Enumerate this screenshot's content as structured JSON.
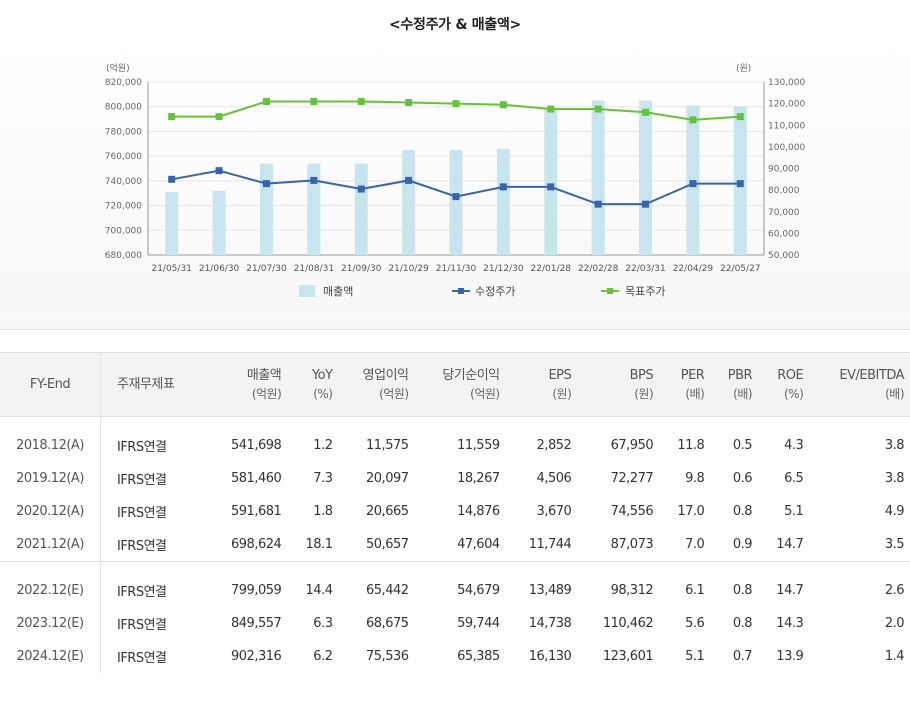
{
  "title": "<수정주가 & 매출액>",
  "chart_data": {
    "type": "bar+line",
    "left_axis_unit": "(억원)",
    "right_axis_unit": "(원)",
    "left_ticks": [
      "820,000",
      "800,000",
      "780,000",
      "760,000",
      "740,000",
      "720,000",
      "700,000",
      "680,000"
    ],
    "right_ticks": [
      "130,000",
      "120,000",
      "110,000",
      "100,000",
      "90,000",
      "80,000",
      "70,000",
      "60,000",
      "50,000"
    ],
    "ylim_left": [
      680000,
      820000
    ],
    "ylim_right": [
      50000,
      130000
    ],
    "categories": [
      "21/05/31",
      "21/06/30",
      "21/07/30",
      "21/08/31",
      "21/09/30",
      "21/10/29",
      "21/11/30",
      "21/12/30",
      "22/01/28",
      "22/02/28",
      "22/03/31",
      "22/04/29",
      "22/05/27"
    ],
    "series": [
      {
        "name": "매출액",
        "type": "bar",
        "axis": "left",
        "color": "#c6e5ec",
        "values": [
          731000,
          732000,
          754000,
          754000,
          754000,
          765000,
          765000,
          766000,
          799000,
          805000,
          805000,
          801000,
          800000
        ]
      },
      {
        "name": "수정주가",
        "type": "line",
        "axis": "right",
        "color": "#3a62ad",
        "values": [
          85000,
          89000,
          83000,
          84500,
          80500,
          84500,
          77000,
          81500,
          81500,
          73500,
          73500,
          83000,
          83000
        ]
      },
      {
        "name": "목표주가",
        "type": "line",
        "axis": "right",
        "color": "#66c23a",
        "values": [
          114000,
          114000,
          121000,
          121000,
          121000,
          120500,
          120000,
          119500,
          117500,
          117500,
          116000,
          112500,
          114000
        ]
      }
    ],
    "grid": true,
    "legend": "bottom"
  },
  "table": {
    "headers": [
      {
        "label": "FY-End",
        "unit": ""
      },
      {
        "label": "주재무제표",
        "unit": ""
      },
      {
        "label": "매출액",
        "unit": "(억원)"
      },
      {
        "label": "YoY",
        "unit": "(%)"
      },
      {
        "label": "영업이익",
        "unit": "(억원)"
      },
      {
        "label": "당기순이익",
        "unit": "(억원)"
      },
      {
        "label": "EPS",
        "unit": "(원)"
      },
      {
        "label": "BPS",
        "unit": "(원)"
      },
      {
        "label": "PER",
        "unit": "(배)"
      },
      {
        "label": "PBR",
        "unit": "(배)"
      },
      {
        "label": "ROE",
        "unit": "(%)"
      },
      {
        "label": "EV/EBITDA",
        "unit": "(배)"
      }
    ],
    "actual_rows": [
      [
        "2018.12(A)",
        "IFRS연결",
        "541,698",
        "1.2",
        "11,575",
        "11,559",
        "2,852",
        "67,950",
        "11.8",
        "0.5",
        "4.3",
        "3.8"
      ],
      [
        "2019.12(A)",
        "IFRS연결",
        "581,460",
        "7.3",
        "20,097",
        "18,267",
        "4,506",
        "72,277",
        "9.8",
        "0.6",
        "6.5",
        "3.8"
      ],
      [
        "2020.12(A)",
        "IFRS연결",
        "591,681",
        "1.8",
        "20,665",
        "14,876",
        "3,670",
        "74,556",
        "17.0",
        "0.8",
        "5.1",
        "4.9"
      ],
      [
        "2021.12(A)",
        "IFRS연결",
        "698,624",
        "18.1",
        "50,657",
        "47,604",
        "11,744",
        "87,073",
        "7.0",
        "0.9",
        "14.7",
        "3.5"
      ]
    ],
    "estimate_rows": [
      [
        "2022.12(E)",
        "IFRS연결",
        "799,059",
        "14.4",
        "65,442",
        "54,679",
        "13,489",
        "98,312",
        "6.1",
        "0.8",
        "14.7",
        "2.6"
      ],
      [
        "2023.12(E)",
        "IFRS연결",
        "849,557",
        "6.3",
        "68,675",
        "59,744",
        "14,738",
        "110,462",
        "5.6",
        "0.8",
        "14.3",
        "2.0"
      ],
      [
        "2024.12(E)",
        "IFRS연결",
        "902,316",
        "6.2",
        "75,536",
        "65,385",
        "16,130",
        "123,601",
        "5.1",
        "0.7",
        "13.9",
        "1.4"
      ]
    ]
  }
}
